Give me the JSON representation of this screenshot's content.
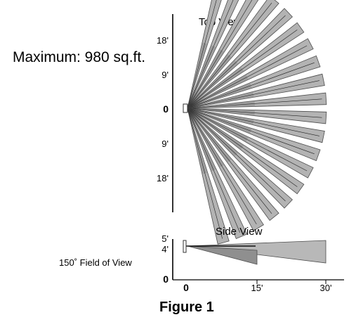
{
  "max_area_label": "Maximum: 980 sq.ft.",
  "field_of_view_label": "150˚ Field of View",
  "figure_caption": "Figure 1",
  "top_view": {
    "title": "Top View",
    "tick_labels": [
      "18'",
      "9'",
      "0",
      "9'",
      "18'"
    ],
    "zones": 20,
    "fov_degrees": 150,
    "colors": {
      "zone_fill": "#b3b3b3",
      "zone_stroke": "#4d4d4d",
      "overlap_fill": "#8c8c8c"
    }
  },
  "side_view": {
    "title": "Side View",
    "y_tick_labels": [
      "5'",
      "4'",
      "0"
    ],
    "x_tick_labels": [
      "0",
      "15'",
      "30'"
    ],
    "colors": {
      "long_fill": "#b8b8b8",
      "short_fill": "#8f8f8f",
      "stroke": "#4d4d4d"
    }
  }
}
